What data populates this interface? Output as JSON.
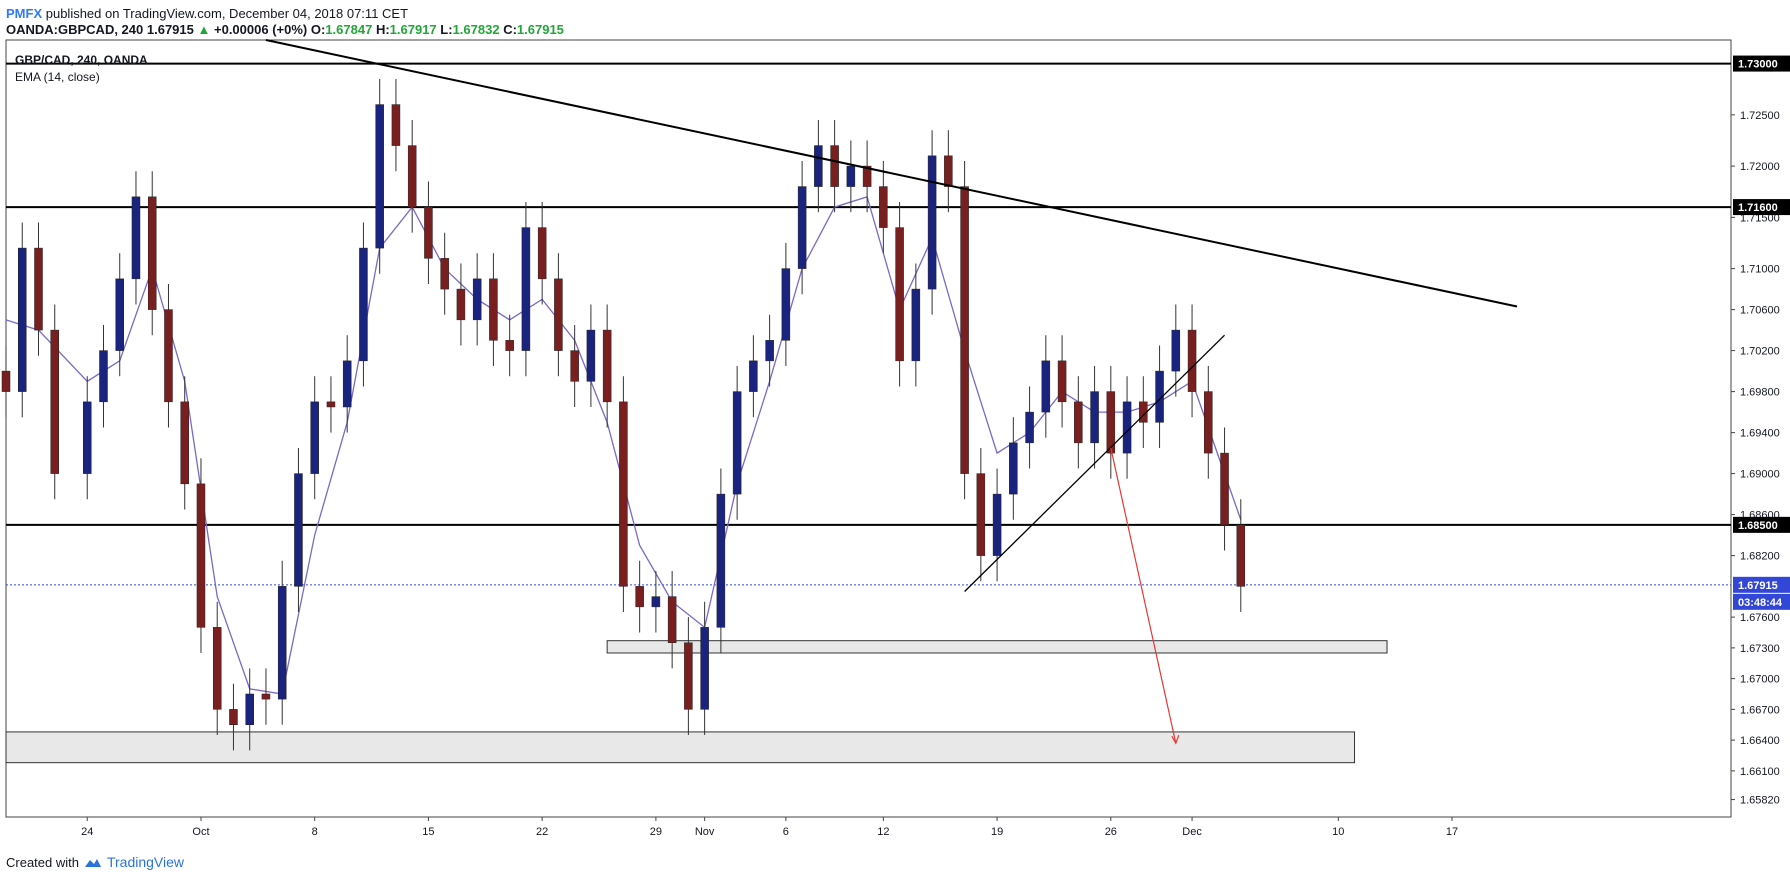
{
  "header": {
    "brand": "PMFX",
    "published": " published on TradingView.com, December 04, 2018 07:11 CET",
    "symbol": "OANDA:GBPCAD, 240",
    "last": "1.67915",
    "up_arrow": "▲",
    "change": "+0.00006 (+0%)",
    "o_label": "O:",
    "o": "1.67847",
    "h_label": "H:",
    "h": "1.67917",
    "l_label": "L:",
    "l": "1.67832",
    "c_label": "C:",
    "c": "1.67915"
  },
  "legend": {
    "symbol": "GBP/CAD, 240, OANDA",
    "indicator": "EMA (14, close)"
  },
  "footer": {
    "created_with": "Created with",
    "tradingview": "TradingView"
  },
  "colors": {
    "bull": "#1a237e",
    "bear": "#7a1f1f",
    "ema": "#7b68c9",
    "price_line": "#3347d6",
    "level": "#000000",
    "zone_fill": "#e8e8e8",
    "arrow": "#e53935"
  },
  "chart_data": {
    "type": "candlestick",
    "title": "GBP/CAD, 240, OANDA",
    "indicator": "EMA (14, close)",
    "ylim": [
      1.6565,
      1.7323
    ],
    "y_ticks": [
      "1.72500",
      "1.72000",
      "1.71500",
      "1.71000",
      "1.70600",
      "1.70200",
      "1.69800",
      "1.69400",
      "1.69000",
      "1.68600",
      "1.68200",
      "1.67600",
      "1.67300",
      "1.67000",
      "1.66700",
      "1.66400",
      "1.66100",
      "1.65820"
    ],
    "y_tick_values": [
      1.725,
      1.72,
      1.715,
      1.71,
      1.706,
      1.702,
      1.698,
      1.694,
      1.69,
      1.686,
      1.682,
      1.676,
      1.673,
      1.67,
      1.667,
      1.664,
      1.661,
      1.6582
    ],
    "x_ticks": [
      "24",
      "Oct",
      "8",
      "15",
      "22",
      "29",
      "Nov",
      "6",
      "12",
      "19",
      "26",
      "Dec",
      "10",
      "17"
    ],
    "x_tick_dates": [
      "2018-09-24",
      "2018-10-01",
      "2018-10-08",
      "2018-10-15",
      "2018-10-22",
      "2018-10-29",
      "2018-11-01",
      "2018-11-06",
      "2018-11-12",
      "2018-11-19",
      "2018-11-26",
      "2018-12-01",
      "2018-12-10",
      "2018-12-17"
    ],
    "x_range": [
      "2018-09-19",
      "2018-12-21"
    ],
    "levels": [
      {
        "label": "1.73000",
        "value": 1.73
      },
      {
        "label": "1.71600",
        "value": 1.716
      },
      {
        "label": "1.68500",
        "value": 1.685
      }
    ],
    "last_price": {
      "label": "1.67915",
      "value": 1.67915,
      "countdown": "03:48:44"
    },
    "close_series": [
      {
        "date": "2018-09-19",
        "close": 1.698
      },
      {
        "date": "2018-09-20",
        "close": 1.712
      },
      {
        "date": "2018-09-21",
        "close": 1.704
      },
      {
        "date": "2018-09-22",
        "close": 1.69
      },
      {
        "date": "2018-09-24",
        "close": 1.697
      },
      {
        "date": "2018-09-25",
        "close": 1.702
      },
      {
        "date": "2018-09-26",
        "close": 1.709
      },
      {
        "date": "2018-09-27",
        "close": 1.717
      },
      {
        "date": "2018-09-28",
        "close": 1.706
      },
      {
        "date": "2018-09-29",
        "close": 1.697
      },
      {
        "date": "2018-09-30",
        "close": 1.689
      },
      {
        "date": "2018-10-01",
        "close": 1.675
      },
      {
        "date": "2018-10-02",
        "close": 1.667
      },
      {
        "date": "2018-10-03",
        "close": 1.6655
      },
      {
        "date": "2018-10-04",
        "close": 1.6685
      },
      {
        "date": "2018-10-05",
        "close": 1.668
      },
      {
        "date": "2018-10-06",
        "close": 1.679
      },
      {
        "date": "2018-10-07",
        "close": 1.69
      },
      {
        "date": "2018-10-08",
        "close": 1.697
      },
      {
        "date": "2018-10-09",
        "close": 1.6965
      },
      {
        "date": "2018-10-10",
        "close": 1.701
      },
      {
        "date": "2018-10-11",
        "close": 1.712
      },
      {
        "date": "2018-10-12",
        "close": 1.726
      },
      {
        "date": "2018-10-13",
        "close": 1.722
      },
      {
        "date": "2018-10-14",
        "close": 1.716
      },
      {
        "date": "2018-10-15",
        "close": 1.711
      },
      {
        "date": "2018-10-16",
        "close": 1.708
      },
      {
        "date": "2018-10-17",
        "close": 1.705
      },
      {
        "date": "2018-10-18",
        "close": 1.709
      },
      {
        "date": "2018-10-19",
        "close": 1.703
      },
      {
        "date": "2018-10-20",
        "close": 1.702
      },
      {
        "date": "2018-10-21",
        "close": 1.714
      },
      {
        "date": "2018-10-22",
        "close": 1.709
      },
      {
        "date": "2018-10-23",
        "close": 1.702
      },
      {
        "date": "2018-10-24",
        "close": 1.699
      },
      {
        "date": "2018-10-25",
        "close": 1.704
      },
      {
        "date": "2018-10-26",
        "close": 1.697
      },
      {
        "date": "2018-10-27",
        "close": 1.679
      },
      {
        "date": "2018-10-28",
        "close": 1.677
      },
      {
        "date": "2018-10-29",
        "close": 1.678
      },
      {
        "date": "2018-10-30",
        "close": 1.6735
      },
      {
        "date": "2018-10-31",
        "close": 1.667
      },
      {
        "date": "2018-11-01",
        "close": 1.675
      },
      {
        "date": "2018-11-02",
        "close": 1.688
      },
      {
        "date": "2018-11-03",
        "close": 1.698
      },
      {
        "date": "2018-11-04",
        "close": 1.701
      },
      {
        "date": "2018-11-05",
        "close": 1.703
      },
      {
        "date": "2018-11-06",
        "close": 1.71
      },
      {
        "date": "2018-11-07",
        "close": 1.718
      },
      {
        "date": "2018-11-08",
        "close": 1.722
      },
      {
        "date": "2018-11-09",
        "close": 1.718
      },
      {
        "date": "2018-11-10",
        "close": 1.72
      },
      {
        "date": "2018-11-11",
        "close": 1.718
      },
      {
        "date": "2018-11-12",
        "close": 1.714
      },
      {
        "date": "2018-11-13",
        "close": 1.701
      },
      {
        "date": "2018-11-14",
        "close": 1.708
      },
      {
        "date": "2018-11-15",
        "close": 1.721
      },
      {
        "date": "2018-11-16",
        "close": 1.718
      },
      {
        "date": "2018-11-17",
        "close": 1.69
      },
      {
        "date": "2018-11-18",
        "close": 1.682
      },
      {
        "date": "2018-11-19",
        "close": 1.688
      },
      {
        "date": "2018-11-20",
        "close": 1.693
      },
      {
        "date": "2018-11-21",
        "close": 1.696
      },
      {
        "date": "2018-11-22",
        "close": 1.701
      },
      {
        "date": "2018-11-23",
        "close": 1.697
      },
      {
        "date": "2018-11-24",
        "close": 1.693
      },
      {
        "date": "2018-11-25",
        "close": 1.698
      },
      {
        "date": "2018-11-26",
        "close": 1.692
      },
      {
        "date": "2018-11-27",
        "close": 1.697
      },
      {
        "date": "2018-11-28",
        "close": 1.695
      },
      {
        "date": "2018-11-29",
        "close": 1.7
      },
      {
        "date": "2018-11-30",
        "close": 1.704
      },
      {
        "date": "2018-12-01",
        "close": 1.698
      },
      {
        "date": "2018-12-02",
        "close": 1.692
      },
      {
        "date": "2018-12-03",
        "close": 1.685
      },
      {
        "date": "2018-12-04",
        "close": 1.679
      }
    ],
    "ema_series": [
      {
        "date": "2018-09-19",
        "value": 1.705
      },
      {
        "date": "2018-09-21",
        "value": 1.704
      },
      {
        "date": "2018-09-24",
        "value": 1.699
      },
      {
        "date": "2018-09-26",
        "value": 1.701
      },
      {
        "date": "2018-09-28",
        "value": 1.71
      },
      {
        "date": "2018-09-30",
        "value": 1.699
      },
      {
        "date": "2018-10-02",
        "value": 1.678
      },
      {
        "date": "2018-10-04",
        "value": 1.669
      },
      {
        "date": "2018-10-06",
        "value": 1.6685
      },
      {
        "date": "2018-10-08",
        "value": 1.684
      },
      {
        "date": "2018-10-10",
        "value": 1.695
      },
      {
        "date": "2018-10-12",
        "value": 1.712
      },
      {
        "date": "2018-10-14",
        "value": 1.716
      },
      {
        "date": "2018-10-16",
        "value": 1.71
      },
      {
        "date": "2018-10-18",
        "value": 1.707
      },
      {
        "date": "2018-10-20",
        "value": 1.705
      },
      {
        "date": "2018-10-22",
        "value": 1.707
      },
      {
        "date": "2018-10-24",
        "value": 1.703
      },
      {
        "date": "2018-10-26",
        "value": 1.695
      },
      {
        "date": "2018-10-28",
        "value": 1.683
      },
      {
        "date": "2018-10-30",
        "value": 1.6775
      },
      {
        "date": "2018-11-01",
        "value": 1.675
      },
      {
        "date": "2018-11-03",
        "value": 1.689
      },
      {
        "date": "2018-11-05",
        "value": 1.699
      },
      {
        "date": "2018-11-07",
        "value": 1.71
      },
      {
        "date": "2018-11-09",
        "value": 1.716
      },
      {
        "date": "2018-11-11",
        "value": 1.717
      },
      {
        "date": "2018-11-13",
        "value": 1.706
      },
      {
        "date": "2018-11-15",
        "value": 1.713
      },
      {
        "date": "2018-11-17",
        "value": 1.702
      },
      {
        "date": "2018-11-19",
        "value": 1.692
      },
      {
        "date": "2018-11-21",
        "value": 1.694
      },
      {
        "date": "2018-11-23",
        "value": 1.698
      },
      {
        "date": "2018-11-25",
        "value": 1.696
      },
      {
        "date": "2018-11-27",
        "value": 1.696
      },
      {
        "date": "2018-11-29",
        "value": 1.697
      },
      {
        "date": "2018-12-01",
        "value": 1.699
      },
      {
        "date": "2018-12-03",
        "value": 1.69
      },
      {
        "date": "2018-12-04",
        "value": 1.6855
      }
    ],
    "annotations": {
      "downtrend_line": [
        {
          "date": "2018-10-05",
          "value": 1.7323
        },
        {
          "date": "2018-12-21",
          "value": 1.7063
        }
      ],
      "uptrend_line": [
        {
          "date": "2018-11-17",
          "value": 1.6785
        },
        {
          "date": "2018-12-03",
          "value": 1.7035
        }
      ],
      "support_zone": [
        {
          "date": "2018-10-26",
          "value": 1.6737
        },
        {
          "date": "2018-12-13",
          "value": 1.6725
        }
      ],
      "lower_zone": [
        {
          "date": "2018-09-19",
          "value": 1.6648
        },
        {
          "date": "2018-12-11",
          "value": 1.6618
        }
      ],
      "projection_arrow": [
        {
          "date": "2018-11-26",
          "value": 1.6925
        },
        {
          "date": "2018-11-30",
          "value": 1.6637
        }
      ]
    }
  }
}
